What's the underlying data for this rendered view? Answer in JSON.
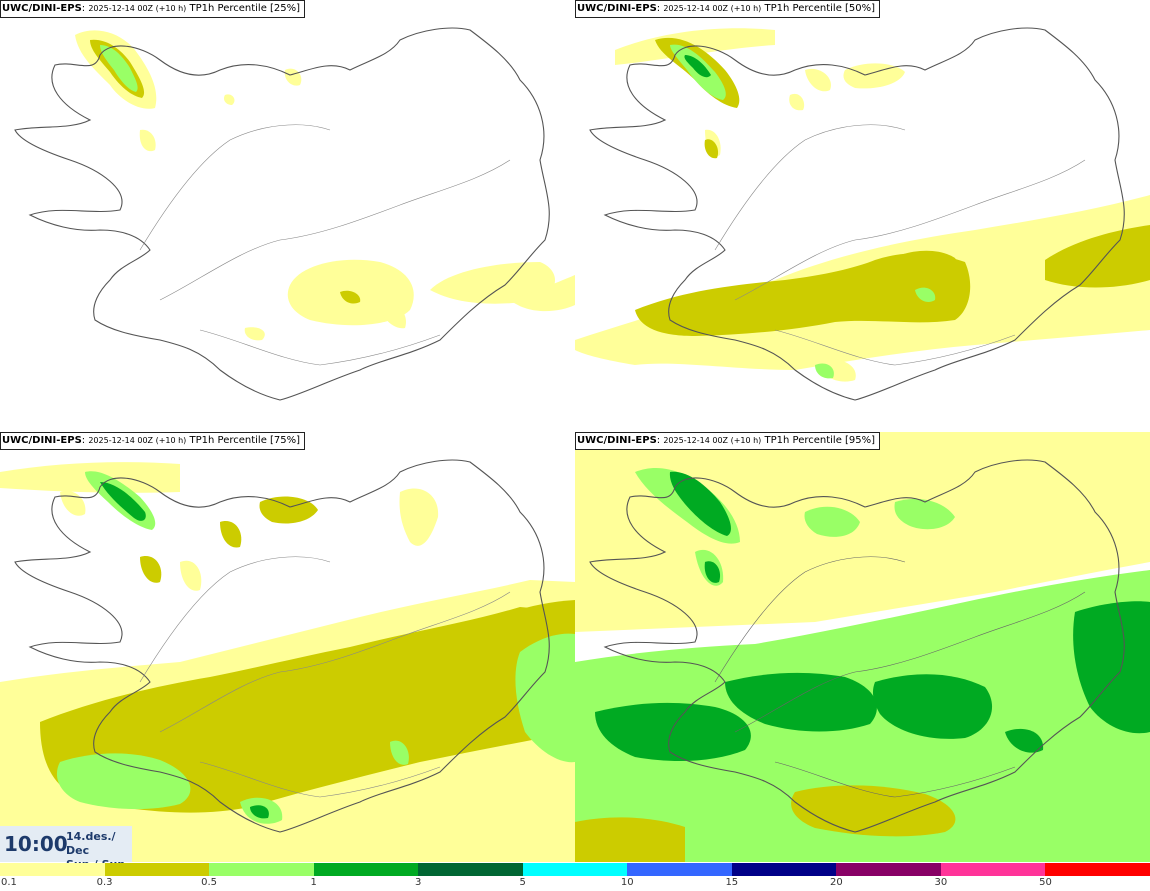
{
  "panels": [
    {
      "model": "UWC/DINI-EPS",
      "run": "2025-12-14 00Z (+10 h)",
      "label": "TP1h Percentile [25%]"
    },
    {
      "model": "UWC/DINI-EPS",
      "run": "2025-12-14 00Z (+10 h)",
      "label": "TP1h Percentile [50%]"
    },
    {
      "model": "UWC/DINI-EPS",
      "run": "2025-12-14 00Z (+10 h)",
      "label": "TP1h Percentile [75%]"
    },
    {
      "model": "UWC/DINI-EPS",
      "run": "2025-12-14 00Z (+10 h)",
      "label": "TP1h Percentile [95%]"
    }
  ],
  "timestamp": {
    "time": "10:00",
    "date_line1": "14.des./ Dec",
    "date_line2": "Sun./ Sun"
  },
  "legend": {
    "ticks": [
      "0.1",
      "0.3",
      "0.5",
      "1",
      "3",
      "5",
      "10",
      "15",
      "20",
      "30",
      "50"
    ],
    "colors": [
      "#ffff99",
      "#cccc00",
      "#99ff66",
      "#00aa22",
      "#006633",
      "#00ffff",
      "#3366ff",
      "#000088",
      "#880066",
      "#ff3399",
      "#ff0000"
    ]
  }
}
